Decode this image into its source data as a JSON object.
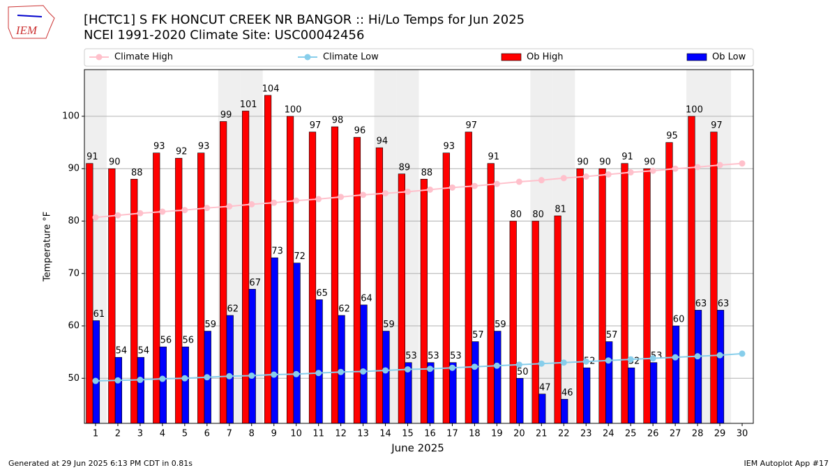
{
  "chart_data": {
    "type": "bar",
    "logo_text": "IEM",
    "title": "[HCTC1] S FK HONCUT CREEK NR BANGOR :: Hi/Lo Temps for Jun 2025",
    "subtitle": "NCEI 1991-2020 Climate Site: USC00042456",
    "x_label": "June 2025",
    "y_label": "Temperature °F",
    "footer_left": "Generated at 29 Jun 2025 6:13 PM CDT in 0.81s",
    "footer_right": "IEM Autoplot App #17",
    "x": [
      1,
      2,
      3,
      4,
      5,
      6,
      7,
      8,
      9,
      10,
      11,
      12,
      13,
      14,
      15,
      16,
      17,
      18,
      19,
      20,
      21,
      22,
      23,
      24,
      25,
      26,
      27,
      28,
      29,
      30
    ],
    "xlim": [
      0.5,
      30.5
    ],
    "xticks": [
      1,
      2,
      3,
      4,
      5,
      6,
      7,
      8,
      9,
      10,
      11,
      12,
      13,
      14,
      15,
      16,
      17,
      18,
      19,
      20,
      21,
      22,
      23,
      24,
      25,
      26,
      27,
      28,
      29,
      30
    ],
    "ylim": [
      41.4,
      108.9
    ],
    "yticks": [
      50,
      60,
      70,
      80,
      90,
      100
    ],
    "grid": true,
    "shaded_days": [
      1,
      7,
      8,
      14,
      15,
      21,
      22,
      28,
      29
    ],
    "legend": "top",
    "series": [
      {
        "name": "Climate High",
        "kind": "line",
        "color": "#ffc0cb",
        "values": [
          80.7,
          81.1,
          81.5,
          81.8,
          82.1,
          82.5,
          82.8,
          83.2,
          83.5,
          83.9,
          84.2,
          84.6,
          85.0,
          85.3,
          85.6,
          86.0,
          86.4,
          86.7,
          87.1,
          87.5,
          87.8,
          88.2,
          88.5,
          88.9,
          89.3,
          89.6,
          90.0,
          90.3,
          90.7,
          91.0
        ]
      },
      {
        "name": "Climate Low",
        "kind": "line",
        "color": "#87ceeb",
        "values": [
          49.5,
          49.6,
          49.7,
          49.9,
          50.0,
          50.2,
          50.4,
          50.5,
          50.7,
          50.8,
          51.0,
          51.2,
          51.3,
          51.5,
          51.7,
          51.8,
          52.0,
          52.2,
          52.4,
          52.6,
          52.8,
          53.0,
          53.2,
          53.4,
          53.6,
          53.8,
          54.0,
          54.2,
          54.4,
          54.7
        ]
      },
      {
        "name": "Ob High",
        "kind": "bar",
        "color": "#ff0000",
        "values": [
          91,
          90,
          88,
          93,
          92,
          93,
          99,
          101,
          104,
          100,
          97,
          98,
          96,
          94,
          89,
          88,
          93,
          97,
          91,
          80,
          80,
          81,
          90,
          90,
          91,
          90,
          95,
          100,
          97,
          null
        ]
      },
      {
        "name": "Ob Low",
        "kind": "bar",
        "color": "#0000ff",
        "values": [
          61,
          54,
          54,
          56,
          56,
          59,
          62,
          67,
          73,
          72,
          65,
          62,
          64,
          59,
          53,
          53,
          53,
          57,
          59,
          50,
          47,
          46,
          52,
          57,
          52,
          53,
          60,
          63,
          63,
          null
        ]
      }
    ]
  }
}
